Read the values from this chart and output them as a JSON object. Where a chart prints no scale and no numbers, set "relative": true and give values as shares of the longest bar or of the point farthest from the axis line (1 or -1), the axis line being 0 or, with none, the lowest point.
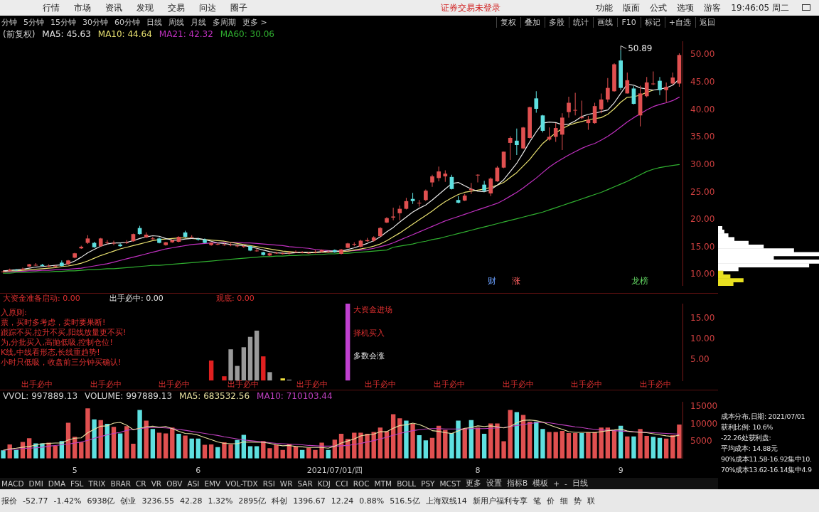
{
  "chart_data": [
    {
      "type": "other",
      "annotations": [
        "行情",
        "市场",
        "资讯",
        "发现",
        "交易",
        "问达",
        "圈子"
      ]
    },
    {
      "type": "other",
      "annotations": [
        "证券交易未登录",
        "功能",
        "版面",
        "公式",
        "选项",
        "游客",
        "19:46:05 周二"
      ]
    },
    {
      "type": "other",
      "annotations": [
        "分钟",
        "5分钟",
        "15分钟",
        "30分钟",
        "60分钟",
        "日线",
        "周线",
        "月线",
        "多周期",
        "更多 >"
      ]
    },
    {
      "type": "other",
      "annotations": [
        "复权",
        "叠加",
        "多股",
        "统计",
        "画线",
        "F10",
        "标记",
        "+自选",
        "返回"
      ]
    },
    {
      "type": "candlestick",
      "title": "(前复权)",
      "legend": "top left",
      "tick_labels": "y",
      "categories": [
        null,
        null,
        null,
        null,
        null,
        null,
        null,
        null,
        null,
        null,
        null,
        null,
        null,
        null,
        null,
        null,
        null,
        null,
        null,
        null,
        null,
        null,
        null,
        null,
        null,
        null,
        null,
        null,
        null,
        null,
        null,
        null,
        null,
        null,
        null,
        null,
        null,
        null,
        null,
        null,
        null,
        null,
        null,
        null,
        null,
        null,
        null,
        null,
        null,
        null,
        null,
        null,
        null,
        null,
        null,
        null,
        null,
        null,
        null,
        null,
        null,
        null,
        null,
        null,
        null,
        null,
        null,
        null,
        null,
        null,
        null,
        null,
        null,
        null,
        null,
        null,
        null,
        null,
        null,
        null,
        null,
        null,
        null,
        null,
        null,
        null,
        null,
        null,
        null,
        null,
        null,
        null,
        null,
        null,
        null,
        null,
        null,
        null,
        null,
        null,
        null,
        null,
        null,
        null,
        null
      ],
      "ohlc": [
        [
          10.5,
          10.8,
          10.4,
          10.6
        ],
        [
          10.7,
          11.1,
          10.6,
          10.9
        ],
        [
          10.9,
          11.0,
          10.7,
          10.8
        ],
        [
          10.9,
          11.3,
          10.8,
          11.1
        ],
        [
          11.5,
          12.0,
          11.4,
          11.9
        ],
        [
          11.8,
          12.1,
          11.6,
          11.8
        ],
        [
          11.8,
          12.0,
          11.5,
          11.6
        ],
        [
          11.6,
          11.9,
          11.4,
          11.6
        ],
        [
          11.6,
          11.8,
          11.4,
          11.6
        ],
        [
          12.2,
          12.6,
          11.5,
          11.6
        ],
        [
          11.9,
          12.7,
          11.8,
          12.6
        ],
        [
          13.1,
          14.0,
          13.0,
          13.9
        ],
        [
          14.8,
          15.3,
          14.7,
          15.1
        ],
        [
          15.8,
          17.2,
          15.6,
          16.6
        ],
        [
          15.8,
          16.0,
          14.9,
          15.0
        ],
        [
          15.2,
          16.7,
          15.1,
          16.6
        ],
        [
          15.9,
          16.3,
          15.5,
          15.9
        ],
        [
          15.8,
          16.2,
          15.4,
          15.8
        ],
        [
          15.5,
          15.7,
          15.1,
          15.2
        ],
        [
          15.8,
          16.3,
          15.6,
          15.9
        ],
        [
          16.1,
          17.5,
          16.0,
          17.4
        ],
        [
          18.5,
          18.9,
          17.3,
          17.4
        ],
        [
          16.8,
          17.7,
          16.7,
          17.3
        ],
        [
          16.6,
          16.9,
          16.4,
          16.6
        ],
        [
          16.6,
          16.8,
          15.7,
          15.8
        ],
        [
          15.4,
          16.0,
          15.3,
          15.9
        ],
        [
          15.9,
          16.4,
          15.8,
          16.3
        ],
        [
          16.0,
          17.0,
          15.9,
          16.9
        ],
        [
          17.7,
          18.0,
          16.8,
          16.9
        ],
        [
          16.9,
          17.2,
          16.7,
          16.9
        ],
        [
          16.5,
          16.7,
          16.2,
          16.4
        ],
        [
          16.4,
          16.6,
          15.7,
          15.8
        ],
        [
          15.4,
          15.9,
          15.3,
          15.8
        ],
        [
          15.6,
          15.8,
          15.4,
          15.6
        ],
        [
          15.5,
          15.7,
          15.3,
          15.5
        ],
        [
          15.5,
          15.8,
          15.2,
          15.5
        ],
        [
          15.3,
          15.6,
          15.0,
          15.3
        ],
        [
          15.2,
          15.4,
          14.9,
          15.2
        ],
        [
          15.2,
          15.3,
          14.3,
          14.4
        ],
        [
          14.4,
          14.8,
          14.2,
          14.4
        ],
        [
          14.1,
          14.2,
          13.5,
          13.6
        ],
        [
          13.5,
          14.0,
          13.4,
          13.9
        ],
        [
          14.0,
          14.2,
          13.8,
          14.0
        ],
        [
          13.9,
          14.1,
          13.7,
          13.9
        ],
        [
          14.0,
          14.3,
          13.7,
          14.0
        ],
        [
          14.2,
          14.4,
          14.0,
          14.2
        ],
        [
          14.1,
          14.3,
          13.9,
          14.1
        ],
        [
          14.0,
          14.2,
          13.8,
          14.0
        ],
        [
          14.2,
          14.5,
          13.9,
          14.2
        ],
        [
          14.2,
          14.6,
          14.1,
          14.5
        ],
        [
          14.2,
          14.4,
          14.0,
          14.2
        ],
        [
          14.5,
          14.6,
          14.0,
          14.1
        ],
        [
          13.8,
          14.7,
          13.7,
          14.6
        ],
        [
          14.9,
          15.8,
          14.8,
          15.7
        ],
        [
          15.5,
          15.9,
          15.2,
          15.6
        ],
        [
          15.1,
          16.4,
          15.0,
          16.2
        ],
        [
          16.1,
          16.7,
          16.0,
          16.3
        ],
        [
          16.2,
          17.0,
          16.0,
          16.8
        ],
        [
          17.0,
          18.7,
          16.9,
          18.5
        ],
        [
          19.5,
          20.5,
          19.4,
          20.3
        ],
        [
          20.4,
          22.2,
          19.9,
          20.6
        ],
        [
          21.2,
          22.6,
          19.9,
          22.0
        ],
        [
          22.0,
          24.0,
          21.9,
          23.4
        ],
        [
          23.8,
          24.9,
          22.9,
          23.4
        ],
        [
          23.0,
          23.6,
          22.4,
          23.1
        ],
        [
          23.6,
          25.5,
          23.4,
          25.3
        ],
        [
          26.8,
          28.2,
          26.0,
          27.9
        ],
        [
          27.6,
          29.7,
          27.0,
          28.8
        ],
        [
          27.9,
          29.0,
          26.9,
          28.4
        ],
        [
          27.8,
          28.2,
          25.5,
          25.6
        ],
        [
          23.6,
          24.3,
          23.0,
          23.1
        ],
        [
          23.5,
          24.7,
          23.4,
          24.4
        ],
        [
          25.4,
          26.7,
          24.7,
          25.6
        ],
        [
          28.1,
          28.3,
          26.8,
          28.2
        ],
        [
          26.4,
          27.1,
          25.1,
          25.3
        ],
        [
          24.8,
          27.7,
          24.3,
          27.5
        ],
        [
          27.0,
          29.8,
          26.9,
          29.5
        ],
        [
          29.5,
          32.4,
          29.4,
          32.4
        ],
        [
          34.0,
          35.2,
          30.9,
          34.9
        ],
        [
          34.4,
          36.6,
          31.8,
          33.6
        ],
        [
          33.0,
          36.9,
          32.9,
          36.8
        ],
        [
          34.9,
          40.6,
          34.8,
          40.5
        ],
        [
          42.1,
          43.4,
          39.5,
          40.2
        ],
        [
          39.0,
          39.1,
          35.9,
          36.2
        ],
        [
          34.6,
          36.8,
          34.4,
          35.1
        ],
        [
          35.1,
          37.6,
          34.2,
          36.7
        ],
        [
          35.5,
          39.4,
          32.7,
          38.6
        ],
        [
          39.6,
          42.4,
          38.6,
          41.3
        ],
        [
          39.9,
          43.1,
          39.0,
          40.0
        ],
        [
          38.5,
          41.7,
          38.3,
          38.7
        ],
        [
          37.6,
          38.9,
          36.4,
          38.2
        ],
        [
          37.6,
          41.3,
          37.5,
          40.7
        ],
        [
          40.1,
          43.0,
          39.4,
          41.9
        ],
        [
          41.9,
          45.8,
          41.4,
          44.0
        ],
        [
          43.4,
          48.5,
          43.3,
          48.3
        ],
        [
          49.0,
          50.89,
          43.6,
          44.0
        ],
        [
          43.0,
          46.8,
          43.0,
          45.4
        ],
        [
          43.9,
          44.3,
          41.0,
          41.1
        ],
        [
          39.0,
          44.4,
          37.0,
          43.0
        ],
        [
          42.5,
          46.0,
          42.3,
          45.0
        ],
        [
          44.7,
          47.0,
          44.5,
          44.8
        ],
        [
          45.3,
          46.0,
          42.7,
          43.6
        ],
        [
          43.6,
          45.0,
          41.4,
          44.2
        ],
        [
          44.8,
          46.8,
          44.6,
          45.9
        ],
        [
          44.8,
          50.3,
          44.2,
          50.0
        ]
      ],
      "series": [
        {
          "name": "MA5: 45.63",
          "type": "line",
          "color": "#e8e8e8",
          "values": [
            10.7,
            10.8,
            10.9,
            11.0,
            11.2,
            11.4,
            11.5,
            11.6,
            11.7,
            11.8,
            12.0,
            12.5,
            13.2,
            14.0,
            14.6,
            15.2,
            15.6,
            15.8,
            15.8,
            15.9,
            16.2,
            16.6,
            16.9,
            17.1,
            17.0,
            16.6,
            16.3,
            16.3,
            16.5,
            16.6,
            16.6,
            16.4,
            16.1,
            15.8,
            15.7,
            15.5,
            15.4,
            15.3,
            15.1,
            14.8,
            14.5,
            14.2,
            14.0,
            13.9,
            13.9,
            14.0,
            14.1,
            14.1,
            14.1,
            14.2,
            14.3,
            14.3,
            14.3,
            14.6,
            14.9,
            15.3,
            15.7,
            16.2,
            16.9,
            17.8,
            18.6,
            19.6,
            20.5,
            21.4,
            22.1,
            22.7,
            23.6,
            24.6,
            25.6,
            26.6,
            26.8,
            26.2,
            25.6,
            25.2,
            25.1,
            25.5,
            26.3,
            27.3,
            28.8,
            30.3,
            32.2,
            34.2,
            36.0,
            37.6,
            37.8,
            37.7,
            37.3,
            37.4,
            38.0,
            38.8,
            39.2,
            39.4,
            39.7,
            40.0,
            41.3,
            43.0,
            44.7,
            44.5,
            44.0,
            43.8,
            43.6,
            43.8,
            44.0,
            44.5,
            45.63
          ]
        },
        {
          "name": "MA10: 44.64",
          "type": "line",
          "color": "#e8e070",
          "values": [
            10.6,
            10.7,
            10.7,
            10.8,
            10.9,
            11.0,
            11.1,
            11.2,
            11.3,
            11.5,
            11.6,
            11.8,
            12.1,
            12.5,
            13.0,
            13.5,
            13.9,
            14.3,
            14.7,
            15.0,
            15.3,
            15.6,
            15.9,
            16.2,
            16.4,
            16.5,
            16.6,
            16.7,
            16.7,
            16.6,
            16.5,
            16.4,
            16.3,
            16.2,
            16.1,
            15.9,
            15.7,
            15.5,
            15.3,
            15.1,
            14.9,
            14.7,
            14.5,
            14.3,
            14.2,
            14.1,
            14.0,
            14.0,
            14.0,
            14.1,
            14.1,
            14.2,
            14.2,
            14.3,
            14.5,
            14.7,
            14.9,
            15.2,
            15.6,
            16.2,
            16.9,
            17.6,
            18.4,
            19.2,
            20.0,
            20.8,
            21.6,
            22.5,
            23.3,
            24.0,
            24.6,
            25.0,
            25.2,
            25.4,
            25.6,
            25.9,
            26.3,
            26.8,
            27.7,
            28.6,
            29.8,
            31.0,
            32.5,
            33.9,
            34.9,
            35.8,
            36.6,
            37.2,
            37.6,
            37.9,
            38.2,
            38.4,
            38.6,
            39.2,
            40.2,
            41.4,
            42.3,
            42.4,
            42.7,
            43.2,
            43.6,
            null,
            null,
            null,
            null
          ]
        },
        {
          "name": "MA21: 42.32",
          "type": "line",
          "color": "#c030c0",
          "values": [
            10.5,
            10.5,
            10.6,
            10.6,
            10.7,
            10.7,
            10.8,
            10.8,
            10.9,
            10.9,
            11.0,
            11.1,
            11.2,
            11.4,
            11.6,
            11.8,
            12.0,
            12.3,
            12.6,
            12.9,
            13.2,
            13.5,
            13.8,
            14.1,
            14.4,
            14.7,
            14.9,
            15.1,
            15.3,
            15.5,
            15.6,
            15.7,
            15.8,
            15.8,
            15.9,
            15.9,
            15.9,
            15.8,
            15.8,
            15.7,
            15.6,
            15.5,
            15.4,
            15.3,
            15.1,
            15.0,
            14.9,
            14.8,
            14.6,
            14.5,
            14.4,
            14.3,
            14.3,
            14.3,
            14.4,
            14.5,
            14.6,
            14.8,
            15.1,
            15.4,
            15.8,
            16.3,
            16.8,
            17.3,
            17.8,
            18.3,
            18.8,
            19.3,
            19.8,
            20.2,
            20.6,
            21.0,
            21.4,
            21.8,
            22.2,
            22.6,
            23.0,
            23.6,
            24.3,
            25.0,
            25.8,
            26.7,
            27.6,
            28.6,
            29.6,
            30.4,
            31.1,
            31.8,
            32.4,
            33.0,
            33.5,
            33.9,
            34.5,
            35.2,
            36.0,
            36.9,
            37.8,
            38.6,
            39.3,
            40.0,
            40.6,
            41.0,
            41.3,
            41.7,
            42.32
          ]
        },
        {
          "name": "MA60: 30.06",
          "type": "line",
          "color": "#30b030",
          "values": [
            10.3,
            10.3,
            10.4,
            10.4,
            10.4,
            10.5,
            10.5,
            10.5,
            10.6,
            10.6,
            10.7,
            10.7,
            10.8,
            10.9,
            10.9,
            11.0,
            11.1,
            11.1,
            11.2,
            11.3,
            11.4,
            11.5,
            11.6,
            11.7,
            11.7,
            11.8,
            11.9,
            12.0,
            12.1,
            12.2,
            12.3,
            12.4,
            12.5,
            12.6,
            12.7,
            12.8,
            12.9,
            13.0,
            13.1,
            13.2,
            13.3,
            13.3,
            13.4,
            13.4,
            13.5,
            13.5,
            13.6,
            13.6,
            13.7,
            13.7,
            13.8,
            13.8,
            13.9,
            13.9,
            14.0,
            14.1,
            14.2,
            14.3,
            14.4,
            14.5,
            15.0,
            15.2,
            15.4,
            15.6,
            15.9,
            16.1,
            16.4,
            16.6,
            16.9,
            17.2,
            17.5,
            17.8,
            18.1,
            18.4,
            18.7,
            19.0,
            19.3,
            19.6,
            19.9,
            20.2,
            20.5,
            20.8,
            21.1,
            21.4,
            21.8,
            22.2,
            22.6,
            23.0,
            23.4,
            23.8,
            24.2,
            24.6,
            25.0,
            25.5,
            26.0,
            26.5,
            27.0,
            27.6,
            28.2,
            28.8,
            29.2,
            29.5,
            29.7,
            29.9,
            30.06
          ]
        }
      ],
      "ylim": [
        8,
        52.5
      ],
      "yticks": [
        {
          "value": 10,
          "label": "10.00"
        },
        {
          "value": 15,
          "label": "15.00"
        },
        {
          "value": 20,
          "label": "20.00"
        },
        {
          "value": 25,
          "label": "25.00"
        },
        {
          "value": 30,
          "label": "30.00"
        },
        {
          "value": 35,
          "label": "35.00"
        },
        {
          "value": 40,
          "label": "40.00"
        },
        {
          "value": 45,
          "label": "45.00"
        },
        {
          "value": 50,
          "label": "50.00"
        }
      ],
      "annotations": [
        "50.89",
        "财",
        "涨",
        "龙榜"
      ]
    },
    {
      "type": "bar",
      "orientation": "horizontal",
      "relative": true,
      "tick_labels": false,
      "categories": [
        null,
        null,
        null,
        null,
        null,
        null,
        null,
        null,
        null,
        null,
        null,
        null,
        null,
        null,
        null,
        null
      ],
      "values": [
        0.04,
        0.06,
        0.1,
        0.16,
        0.3,
        0.45,
        0.75,
        1,
        0.55,
        1,
        0.9,
        0.2,
        0.05,
        0.12,
        0.25,
        0.15
      ],
      "colors": [
        "#ffffff",
        "#ffffff",
        "#ffffff",
        "#ffffff",
        "#ffffff",
        "#ffffff",
        "#ffffff",
        "#ffffff",
        "#ffffff",
        "#ffffff",
        "#ffffff",
        "#ffffff",
        "#e8e020",
        "#e8e020",
        "#e8e020",
        "#e8e020"
      ]
    },
    {
      "type": "bar",
      "tick_labels": "y",
      "categories": [
        null,
        null,
        null,
        null,
        null,
        null,
        null,
        null,
        null,
        null,
        null,
        null,
        null,
        null,
        null,
        null,
        null,
        null,
        null,
        null,
        null,
        null,
        null,
        null,
        null,
        null,
        null,
        null,
        null,
        null,
        null,
        null,
        null,
        null,
        null,
        null,
        null,
        null,
        null,
        null,
        null,
        null,
        null,
        null,
        null,
        null,
        null,
        null,
        null,
        null,
        null,
        null,
        null,
        null,
        null,
        null,
        null,
        null,
        null,
        null,
        null,
        null,
        null,
        null,
        null,
        null,
        null,
        null,
        null,
        null,
        null,
        null,
        null,
        null,
        null,
        null,
        null,
        null,
        null,
        null,
        null,
        null,
        null,
        null,
        null,
        null,
        null,
        null,
        null,
        null,
        null,
        null,
        null,
        null,
        null,
        null,
        null,
        null,
        null,
        null,
        null,
        null,
        null,
        null,
        null
      ],
      "values": [
        null,
        null,
        null,
        null,
        null,
        null,
        null,
        null,
        null,
        null,
        null,
        null,
        null,
        null,
        null,
        null,
        null,
        null,
        null,
        null,
        null,
        null,
        null,
        null,
        null,
        null,
        null,
        null,
        null,
        null,
        null,
        null,
        4.8,
        null,
        1.0,
        7.5,
        3.5,
        8.0,
        10.5,
        12.0,
        5.8,
        2.0,
        null,
        0.5,
        0.2,
        null,
        null,
        null,
        null,
        null,
        null,
        null,
        null,
        18.5,
        null,
        null,
        null,
        null,
        null,
        null,
        null,
        null,
        null,
        null,
        null,
        null,
        null,
        null,
        null,
        null,
        null,
        null,
        null,
        null,
        null,
        null,
        null,
        null,
        null,
        null,
        null,
        null,
        null,
        null,
        null,
        null,
        null,
        null,
        null,
        null,
        null,
        null,
        null,
        null,
        null,
        null,
        null,
        null,
        null,
        null,
        null,
        null,
        null,
        null,
        null
      ],
      "colors": [
        null,
        null,
        null,
        null,
        null,
        null,
        null,
        null,
        null,
        null,
        null,
        null,
        null,
        null,
        null,
        null,
        null,
        null,
        null,
        null,
        null,
        null,
        null,
        null,
        null,
        null,
        null,
        null,
        null,
        null,
        null,
        null,
        "#e02020",
        null,
        "#e02020",
        "#9a9a9a",
        "#9a9a9a",
        "#9a9a9a",
        "#9a9a9a",
        "#9a9a9a",
        "#e02020",
        "#9a9a9a",
        null,
        "#f0e040",
        "#9a9a9a",
        null,
        null,
        null,
        null,
        null,
        null,
        null,
        null,
        "#c040d0",
        null,
        null,
        null,
        null,
        null,
        null,
        null,
        null,
        null,
        null,
        null,
        null,
        null,
        null,
        null,
        null,
        null,
        null,
        null,
        null,
        null,
        null,
        null,
        null,
        null,
        null,
        null,
        null,
        null,
        null,
        null,
        null,
        null,
        null,
        null,
        null,
        null,
        null,
        null,
        null,
        null,
        null,
        null,
        null,
        null,
        null,
        null,
        null,
        null,
        null,
        null
      ],
      "ylim": [
        0,
        18.5
      ],
      "yticks": [
        {
          "value": 5,
          "label": "5.00"
        },
        {
          "value": 10,
          "label": "10.00"
        },
        {
          "value": 15,
          "label": "15.00"
        }
      ],
      "annotations": [
        "大资金准备启动: 0.00",
        "出手必中: 0.00",
        "观底: 0.00",
        "入原则:",
        "票，买时多考虑，卖时要果断!",
        "跟踪不买,拉升不买,阳线放量更不买!",
        "为,分批买入,高抛低吸,控制仓位!",
        "K线,中线看形态,长线重趋势!",
        "小时只低吸，收盘前三分钟买确认!",
        "大资金进场",
        "择机买入",
        "多数会涨",
        "出手必中",
        "出手必中",
        "出手必中",
        "出手必中",
        "出手必中",
        "出手必中",
        "出手必中",
        "出手必中",
        "出手必中",
        "出手必中"
      ]
    },
    {
      "type": "bar",
      "title": "VVOL: 997889.13",
      "legend": "top left",
      "categories": [
        null,
        null,
        null,
        null,
        null,
        null,
        null,
        null,
        null,
        null,
        null,
        "5",
        null,
        null,
        null,
        null,
        null,
        null,
        null,
        null,
        null,
        null,
        null,
        null,
        null,
        null,
        null,
        null,
        null,
        null,
        "6",
        null,
        null,
        null,
        null,
        null,
        null,
        null,
        null,
        null,
        null,
        null,
        null,
        null,
        null,
        null,
        null,
        null,
        null,
        null,
        null,
        "2021/07/01/四",
        null,
        null,
        null,
        null,
        null,
        null,
        null,
        null,
        null,
        null,
        null,
        null,
        null,
        null,
        null,
        null,
        null,
        null,
        null,
        null,
        null,
        "8",
        null,
        null,
        null,
        null,
        null,
        null,
        null,
        null,
        null,
        null,
        null,
        null,
        null,
        null,
        null,
        null,
        null,
        null,
        null,
        null,
        null,
        "9",
        null,
        null,
        null,
        null,
        null,
        null,
        null,
        null,
        null
      ],
      "series": [
        {
          "name": "VOLUME: 997889.13",
          "colors": [
            "#5ee0e0",
            "#e05050",
            "#5ee0e0",
            "#e05050",
            "#e05050",
            "#5ee0e0",
            "#5ee0e0",
            "#e05050",
            "#e05050",
            "#5ee0e0",
            "#e05050",
            "#e05050",
            "#e05050",
            "#e05050",
            "#5ee0e0",
            "#e05050",
            "#5ee0e0",
            "#e05050",
            "#5ee0e0",
            "#e05050",
            "#e05050",
            "#5ee0e0",
            "#e05050",
            "#5ee0e0",
            "#e05050",
            "#e05050",
            "#e05050",
            "#5ee0e0",
            "#e05050",
            "#5ee0e0",
            "#5ee0e0",
            "#e05050",
            "#e05050",
            "#5ee0e0",
            "#e05050",
            "#e05050",
            "#5ee0e0",
            "#5ee0e0",
            "#5ee0e0",
            "#5ee0e0",
            "#e05050",
            "#e05050",
            "#e05050",
            "#e05050",
            "#e05050",
            "#e05050",
            "#5ee0e0",
            "#e05050",
            "#e05050",
            "#e05050",
            "#5ee0e0",
            "#e05050",
            "#e05050",
            "#e05050",
            "#e05050",
            "#e05050",
            "#e05050",
            "#e05050",
            "#e05050",
            "#e05050",
            "#e05050",
            "#e05050",
            "#5ee0e0",
            "#e05050",
            "#5ee0e0",
            "#5ee0e0",
            "#e05050",
            "#e05050",
            "#e05050",
            "#5ee0e0",
            "#5ee0e0",
            "#e05050",
            "#5ee0e0",
            "#e05050",
            "#5ee0e0",
            "#e05050",
            "#e05050",
            "#e05050",
            "#e05050",
            "#5ee0e0",
            "#e05050",
            "#e05050",
            "#5ee0e0",
            "#5ee0e0",
            "#e05050",
            "#e05050",
            "#e05050",
            "#e05050",
            "#e05050",
            "#5ee0e0",
            "#e05050",
            "#e05050",
            "#e05050",
            "#e05050",
            "#e05050",
            "#5ee0e0",
            "#e05050",
            "#5ee0e0",
            "#e05050",
            "#e05050",
            "#5ee0e0",
            "#5ee0e0",
            "#e05050",
            "#e05050",
            "#e05050"
          ],
          "values": [
            2400,
            4100,
            2500,
            4800,
            5900,
            4400,
            4400,
            4600,
            3700,
            5100,
            10400,
            6300,
            4700,
            14600,
            11400,
            11200,
            10100,
            9200,
            7300,
            9400,
            4300,
            14100,
            11000,
            8600,
            7500,
            7300,
            9000,
            7200,
            6700,
            5800,
            5800,
            4000,
            4100,
            3300,
            4700,
            4100,
            5400,
            6900,
            3600,
            3600,
            5100,
            3000,
            4100,
            2500,
            4300,
            3500,
            2500,
            3100,
            2500,
            4600,
            2500,
            5500,
            7200,
            5700,
            7500,
            7500,
            7200,
            7700,
            9000,
            7900,
            12900,
            11700,
            11000,
            10100,
            6800,
            5300,
            6000,
            9500,
            8300,
            7400,
            11000,
            8800,
            11200,
            9000,
            7200,
            10200,
            10200,
            5000,
            14100,
            13500,
            12700,
            10700,
            10700,
            8600,
            7700,
            7700,
            8000,
            7400,
            7400,
            7400,
            7600,
            7700,
            9000,
            9000,
            8100,
            9500,
            6400,
            6400,
            8600,
            6600,
            6300,
            6000,
            5800,
            6800,
            9900
          ]
        },
        {
          "name": "MA5: 683532.56",
          "type": "line",
          "color": "#e8e0a0",
          "values": [
            2400,
            2800,
            3000,
            3300,
            3500,
            3900,
            4300,
            4400,
            4500,
            4500,
            5400,
            5900,
            6000,
            7500,
            8500,
            9400,
            9500,
            10300,
            10500,
            9700,
            8400,
            8800,
            9200,
            9400,
            9100,
            9300,
            8700,
            7900,
            7300,
            7200,
            6800,
            6100,
            5500,
            4800,
            4400,
            4300,
            4300,
            4800,
            4800,
            4700,
            4700,
            4400,
            4000,
            3700,
            3800,
            3500,
            3400,
            3200,
            3200,
            3200,
            3000,
            3600,
            4500,
            5100,
            5700,
            6600,
            6900,
            7100,
            7800,
            7800,
            8800,
            9600,
            9800,
            10300,
            9900,
            9100,
            8100,
            7900,
            7500,
            7300,
            8000,
            8800,
            9000,
            9500,
            9300,
            9500,
            9200,
            8900,
            9300,
            10400,
            11100,
            11200,
            11000,
            10600,
            9800,
            9100,
            8500,
            7800,
            7600,
            7600,
            7600,
            7500,
            7800,
            8100,
            8300,
            8600,
            8000,
            7700,
            7600,
            7500,
            7200,
            6900,
            6600,
            6400,
            6800
          ]
        },
        {
          "name": "MA10: 710103.44",
          "type": "line",
          "color": "#c040c0",
          "values": [
            2400,
            2600,
            2700,
            2900,
            3000,
            3100,
            3300,
            3600,
            3800,
            4000,
            4200,
            4500,
            4800,
            5300,
            5900,
            6400,
            6900,
            7300,
            7600,
            8200,
            8500,
            8700,
            8900,
            9000,
            9000,
            8900,
            8700,
            8500,
            8200,
            7900,
            7600,
            7300,
            7000,
            6700,
            6300,
            6000,
            5700,
            5400,
            5200,
            5000,
            4800,
            4600,
            4400,
            4300,
            4200,
            4100,
            4000,
            3800,
            3700,
            3600,
            3600,
            3600,
            3700,
            3800,
            4100,
            4400,
            4800,
            5200,
            5700,
            6200,
            6800,
            7300,
            7700,
            8100,
            8400,
            8600,
            8700,
            8700,
            8600,
            8600,
            8600,
            8600,
            8700,
            8700,
            8700,
            8800,
            8900,
            9000,
            9300,
            9600,
            9900,
            10200,
            10400,
            10500,
            10400,
            10100,
            9800,
            9500,
            9200,
            9000,
            8700,
            8500,
            8300,
            8200,
            8100,
            8000,
            7900,
            7800,
            7700,
            7600,
            7500,
            7400,
            7300,
            7200,
            7100
          ]
        }
      ],
      "ylim": [
        0,
        16500
      ],
      "yticks": [
        5000,
        10000,
        15000
      ]
    },
    {
      "type": "other",
      "annotations": [
        "成本分布,日期: 2021/07/01",
        "获利比例: 10.6%",
        "-22.26处获利盘:",
        "平均成本: 14.88元",
        "90%成本11.58-16.92集中10.",
        "70%成本13.62-16.14集中4.9"
      ]
    },
    {
      "type": "other",
      "annotations": [
        "MACD",
        "DMI",
        "DMA",
        "FSL",
        "TRIX",
        "BRAR",
        "CR",
        "VR",
        "OBV",
        "ASI",
        "EMV",
        "VOL-TDX",
        "RSI",
        "WR",
        "SAR",
        "KDJ",
        "CCI",
        "ROC",
        "MTM",
        "BOLL",
        "PSY",
        "MCST",
        "更多",
        "设置",
        "指标B",
        "模板",
        "+",
        "-",
        "日线"
      ]
    },
    {
      "type": "other",
      "annotations": [
        "报价",
        "-52.77",
        "-1.42%",
        "6938亿",
        "创业",
        "3236.55",
        "42.28",
        "1.32%",
        "2895亿",
        "科创",
        "1396.67",
        "12.24",
        "0.88%",
        "516.5亿",
        "上海双线14",
        "新用户福利专享",
        "笔",
        "价",
        "细",
        "势",
        "联"
      ]
    }
  ]
}
